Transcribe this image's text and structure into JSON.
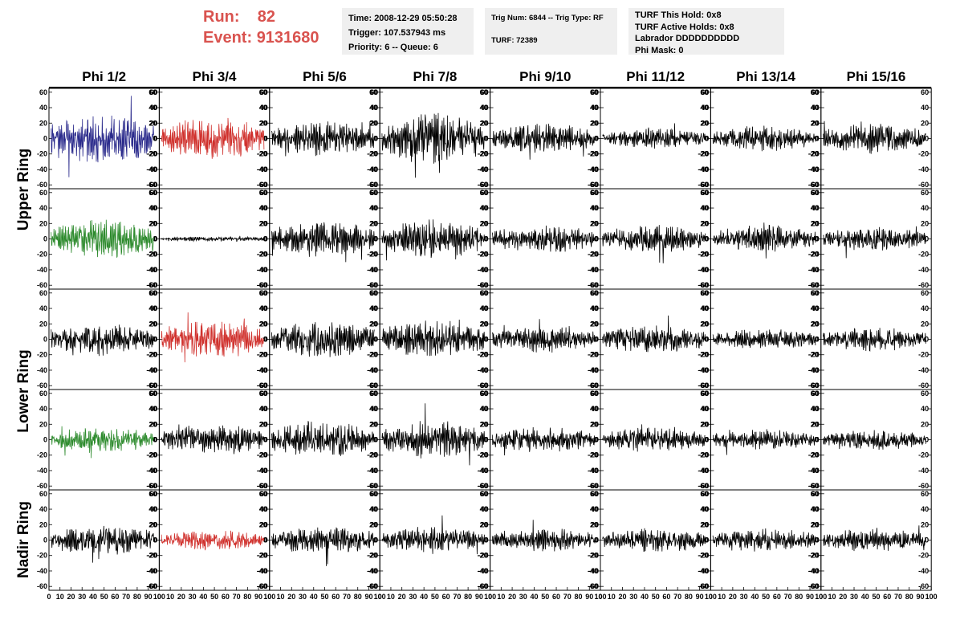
{
  "header": {
    "run_label": "Run:",
    "run_value": "82",
    "event_label": "Event:",
    "event_value": "9131680",
    "time": "Time: 2008-12-29 05:50:28",
    "trigger": "Trigger: 107.537943 ms",
    "priority": "Priority: 6 -- Queue: 6",
    "trig_num": "Trig Num: 6844 -- Trig Type: RF",
    "turf": "TURF: 72389",
    "turf_this_hold": "TURF This Hold: 0x8",
    "turf_active_holds": "TURF Active Holds: 0x8",
    "labrador": "Labrador DDDDDDDDDD",
    "phi_mask": "Phi Mask: 0"
  },
  "colors": {
    "blue": "#2b2b8c",
    "red": "#d0312d",
    "green": "#2e8b2e",
    "black": "#000000",
    "header_red": "#d9534f",
    "box_gray": "#efefef"
  },
  "chart_data": {
    "type": "line",
    "columns": [
      "Phi 1/2",
      "Phi 3/4",
      "Phi 5/6",
      "Phi 7/8",
      "Phi 9/10",
      "Phi 11/12",
      "Phi 13/14",
      "Phi 15/16"
    ],
    "ring_labels": [
      "Upper Ring",
      "Lower Ring",
      "Nadir Ring"
    ],
    "xlim": [
      0,
      100
    ],
    "ylim": [
      -65,
      65
    ],
    "xticks": [
      "0",
      "10",
      "20",
      "30",
      "40",
      "50",
      "60",
      "70",
      "80",
      "90",
      "100"
    ],
    "yticks_left": [
      "60",
      "40",
      "20",
      "0",
      "-20",
      "-40",
      "-60"
    ],
    "yticks_right": [
      "60",
      "40",
      "20",
      "0",
      "-20",
      "-40",
      "-60"
    ],
    "panel_colors": [
      [
        "blue",
        "red",
        "black",
        "black",
        "black",
        "black",
        "black",
        "black"
      ],
      [
        "green",
        "black",
        "black",
        "black",
        "black",
        "black",
        "black",
        "black"
      ],
      [
        "black",
        "red",
        "black",
        "black",
        "black",
        "black",
        "black",
        "black"
      ],
      [
        "green",
        "black",
        "black",
        "black",
        "black",
        "black",
        "black",
        "black"
      ],
      [
        "black",
        "red",
        "black",
        "black",
        "black",
        "black",
        "black",
        "black"
      ]
    ],
    "panel_amplitudes": [
      [
        30,
        25,
        20,
        30,
        18,
        12,
        15,
        18
      ],
      [
        22,
        3,
        22,
        22,
        16,
        16,
        16,
        14
      ],
      [
        18,
        22,
        22,
        22,
        16,
        16,
        12,
        14
      ],
      [
        15,
        18,
        22,
        22,
        15,
        15,
        12,
        12
      ],
      [
        18,
        12,
        16,
        16,
        14,
        14,
        14,
        14
      ]
    ]
  }
}
